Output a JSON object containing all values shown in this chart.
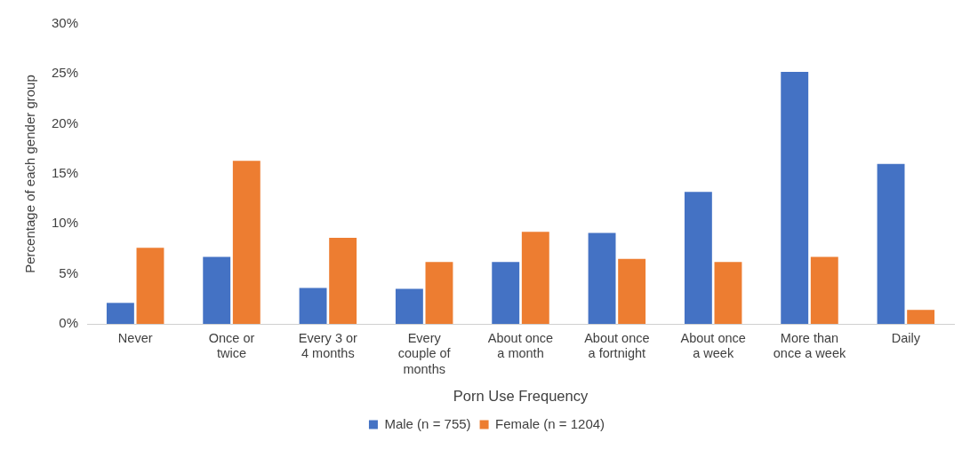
{
  "chart_data": {
    "type": "bar",
    "xlabel": "Porn Use Frequency",
    "ylabel": "Percentage of each gender group",
    "categories": [
      "Never",
      "Once or twice",
      "Every 3 or 4 months",
      "Every couple of months",
      "About once a month",
      "About once a fortnight",
      "About once a week",
      "More than once a week",
      "Daily"
    ],
    "series": [
      {
        "name": "Male (n = 755)",
        "color": "#4472c4",
        "values": [
          2.1,
          6.7,
          3.6,
          3.5,
          6.2,
          9.1,
          13.2,
          25.2,
          16.0
        ]
      },
      {
        "name": "Female (n = 1204)",
        "color": "#ed7d31",
        "values": [
          7.6,
          16.3,
          8.6,
          6.2,
          9.2,
          6.5,
          6.2,
          6.7,
          1.4
        ]
      }
    ],
    "ylim": [
      0,
      30
    ],
    "yticks": [
      {
        "value": 0,
        "label": "0%"
      },
      {
        "value": 5,
        "label": "5%"
      },
      {
        "value": 10,
        "label": "10%"
      },
      {
        "value": 15,
        "label": "15%"
      },
      {
        "value": 20,
        "label": "20%"
      },
      {
        "value": 25,
        "label": "25%"
      },
      {
        "value": 30,
        "label": "30%"
      }
    ],
    "grid": false,
    "legend": "bottom"
  }
}
